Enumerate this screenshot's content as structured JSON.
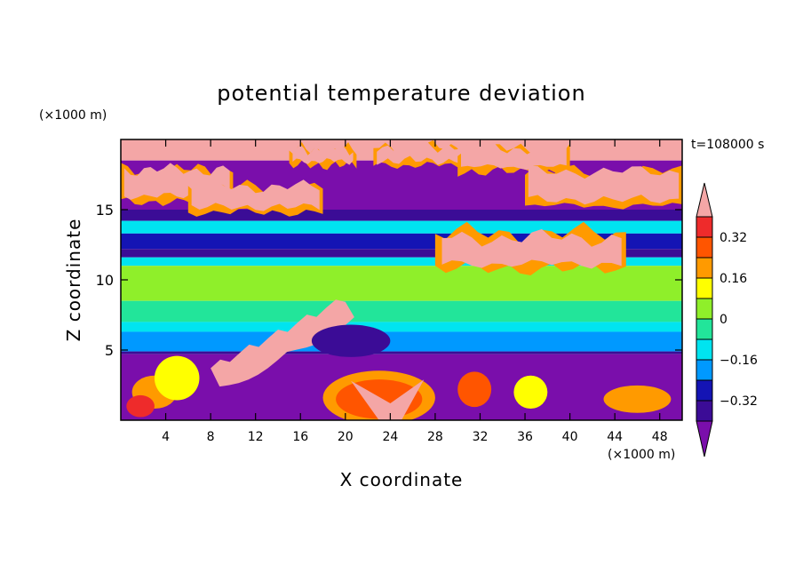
{
  "chart_data": {
    "type": "heatmap",
    "title": "potential temperature deviation",
    "xlabel": "X coordinate",
    "ylabel": "Z coordinate",
    "x_unit": "(×1000 m)",
    "y_unit": "(×1000 m)",
    "time_label": "t=108000 s",
    "xlim": [
      0,
      50
    ],
    "ylim": [
      0,
      20
    ],
    "x_ticks": [
      4,
      8,
      12,
      16,
      20,
      24,
      28,
      32,
      36,
      40,
      44,
      48
    ],
    "y_ticks": [
      5,
      10,
      15
    ],
    "colorbar": {
      "labeled_levels": [
        "0.32",
        "0.16",
        "0",
        "-0.16",
        "-0.32"
      ],
      "labels": [
        "0.32",
        "0.16",
        "0",
        "−0.16",
        "−0.32"
      ],
      "bins": [
        {
          "range": [
            0.4,
            1000000000.0
          ],
          "color": "#f4a6a6"
        },
        {
          "range": [
            0.32,
            0.4
          ],
          "color": "#ee2b2b"
        },
        {
          "range": [
            0.24,
            0.32
          ],
          "color": "#ff5500"
        },
        {
          "range": [
            0.16,
            0.24
          ],
          "color": "#ff9a00"
        },
        {
          "range": [
            0.08,
            0.16
          ],
          "color": "#ffff00"
        },
        {
          "range": [
            0.0,
            0.08
          ],
          "color": "#8fef2a"
        },
        {
          "range": [
            -0.08,
            0.0
          ],
          "color": "#22e59a"
        },
        {
          "range": [
            -0.16,
            -0.08
          ],
          "color": "#00e4f0"
        },
        {
          "range": [
            -0.24,
            -0.16
          ],
          "color": "#0099ff"
        },
        {
          "range": [
            -0.32,
            -0.24
          ],
          "color": "#1414b4"
        },
        {
          "range": [
            -0.4,
            -0.32
          ],
          "color": "#3b0c96"
        },
        {
          "range": [
            -1000000000.0,
            -0.4
          ],
          "color": "#7a0eab"
        }
      ]
    },
    "layers": [
      {
        "z": [
          18.5,
          20.0
        ],
        "value": 0.5
      },
      {
        "z": [
          15.0,
          18.5
        ],
        "value": -0.45
      },
      {
        "z": [
          14.2,
          15.0
        ],
        "value": -0.36
      },
      {
        "z": [
          13.3,
          14.2
        ],
        "value": -0.12
      },
      {
        "z": [
          12.2,
          13.3
        ],
        "value": -0.28
      },
      {
        "z": [
          11.6,
          12.2
        ],
        "value": -0.36
      },
      {
        "z": [
          11.0,
          11.6
        ],
        "value": -0.12
      },
      {
        "z": [
          8.5,
          11.0
        ],
        "value": 0.02
      },
      {
        "z": [
          7.0,
          8.5
        ],
        "value": -0.04
      },
      {
        "z": [
          6.3,
          7.0
        ],
        "value": -0.12
      },
      {
        "z": [
          4.9,
          6.3
        ],
        "value": -0.2
      },
      {
        "z": [
          4.7,
          4.9
        ],
        "value": -0.36
      },
      {
        "z": [
          0.0,
          4.7
        ],
        "value": -0.45
      }
    ],
    "features": [
      {
        "kind": "upper_warm_cloud",
        "x": [
          0,
          50
        ],
        "z": [
          15,
          20
        ],
        "value": 0.5
      },
      {
        "kind": "mid_warm_streak",
        "x": [
          28,
          45
        ],
        "z": [
          10.5,
          14.5
        ],
        "value": 0.5
      },
      {
        "kind": "low_warm_streak",
        "x": [
          8,
          20
        ],
        "z": [
          3,
          8
        ],
        "value": 0.5
      },
      {
        "kind": "cold_pool",
        "x": [
          17,
          24
        ],
        "z": [
          4.5,
          6.8
        ],
        "value": -0.36
      },
      {
        "kind": "boundary_layer_warm_core",
        "x": [
          18,
          28
        ],
        "z": [
          0,
          3.5
        ],
        "value": 0.5
      },
      {
        "kind": "boundary_layer_warm",
        "x": [
          0,
          50
        ],
        "z": [
          0,
          4.7
        ],
        "value": 0.2
      }
    ]
  }
}
